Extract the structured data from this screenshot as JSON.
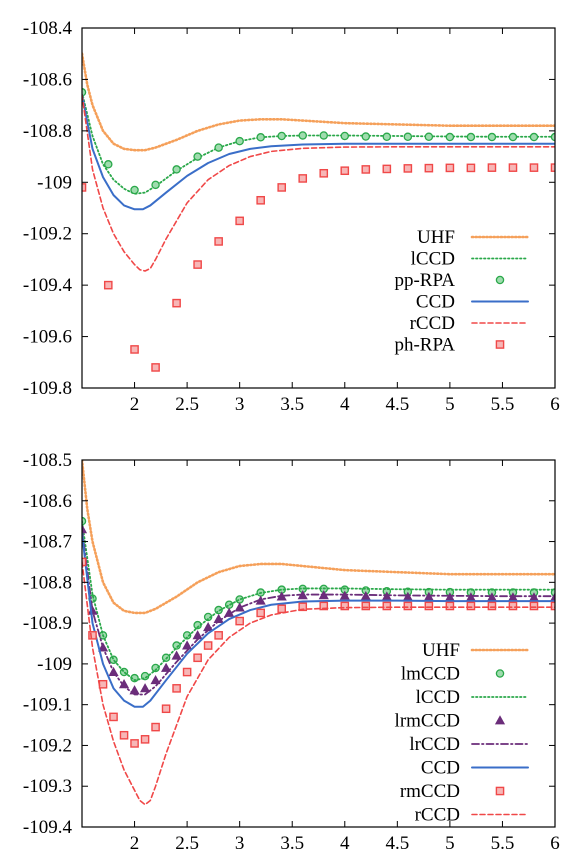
{
  "chart_data": [
    {
      "type": "line",
      "title": "",
      "xlabel": "",
      "ylabel": "",
      "xlim": [
        1.5,
        6
      ],
      "ylim": [
        -109.8,
        -108.4
      ],
      "xticks": [
        "2",
        "2.5",
        "3",
        "3.5",
        "4",
        "4.5",
        "5",
        "5.5",
        "6"
      ],
      "yticks": [
        "-108.4",
        "-108.6",
        "-108.8",
        "-109",
        "-109.2",
        "-109.4",
        "-109.6",
        "-109.8"
      ],
      "grid": false,
      "legend_position": "bottom-right",
      "series": [
        {
          "name": "UHF",
          "style": "dotted-thick",
          "color": "#f5a05a",
          "x": [
            1.5,
            1.55,
            1.6,
            1.7,
            1.8,
            1.9,
            2.0,
            2.1,
            2.2,
            2.4,
            2.6,
            2.8,
            3.0,
            3.2,
            3.4,
            3.6,
            3.8,
            4.0,
            4.5,
            5.0,
            5.5,
            6.0
          ],
          "y": [
            -108.5,
            -108.62,
            -108.7,
            -108.8,
            -108.85,
            -108.87,
            -108.875,
            -108.875,
            -108.865,
            -108.835,
            -108.8,
            -108.775,
            -108.76,
            -108.755,
            -108.755,
            -108.76,
            -108.765,
            -108.77,
            -108.775,
            -108.78,
            -108.78,
            -108.78
          ]
        },
        {
          "name": "lCCD",
          "style": "dotted",
          "color": "#2aa84a",
          "x": [
            1.5,
            1.6,
            1.7,
            1.8,
            1.9,
            2.0,
            2.1,
            2.2,
            2.4,
            2.6,
            2.8,
            3.0,
            3.2,
            3.4,
            3.6,
            4.0,
            4.5,
            5.0,
            5.5,
            6.0
          ],
          "y": [
            -108.65,
            -108.82,
            -108.93,
            -108.99,
            -109.025,
            -109.045,
            -109.04,
            -109.015,
            -108.955,
            -108.905,
            -108.865,
            -108.84,
            -108.825,
            -108.82,
            -108.818,
            -108.818,
            -108.82,
            -108.822,
            -108.823,
            -108.823
          ]
        },
        {
          "name": "pp-RPA",
          "style": "circle",
          "color": "#2aa84a",
          "x": [
            1.5,
            1.75,
            2.0,
            2.2,
            2.4,
            2.6,
            2.8,
            3.0,
            3.2,
            3.4,
            3.6,
            3.8,
            4.0,
            4.2,
            4.4,
            4.6,
            4.8,
            5.0,
            5.2,
            5.4,
            5.6,
            5.8,
            6.0
          ],
          "y": [
            -108.65,
            -108.93,
            -109.03,
            -109.01,
            -108.95,
            -108.9,
            -108.865,
            -108.84,
            -108.825,
            -108.82,
            -108.818,
            -108.818,
            -108.82,
            -108.822,
            -108.823,
            -108.823,
            -108.823,
            -108.824,
            -108.824,
            -108.824,
            -108.824,
            -108.824,
            -108.824
          ]
        },
        {
          "name": "CCD",
          "style": "solid",
          "color": "#3a6ec8",
          "x": [
            1.5,
            1.6,
            1.7,
            1.8,
            1.9,
            2.0,
            2.08,
            2.15,
            2.3,
            2.5,
            2.7,
            2.9,
            3.1,
            3.3,
            3.6,
            4.0,
            4.5,
            5.0,
            5.5,
            6.0
          ],
          "y": [
            -108.66,
            -108.87,
            -108.98,
            -109.05,
            -109.09,
            -109.105,
            -109.105,
            -109.09,
            -109.04,
            -108.975,
            -108.925,
            -108.89,
            -108.87,
            -108.86,
            -108.853,
            -108.85,
            -108.85,
            -108.85,
            -108.85,
            -108.85
          ]
        },
        {
          "name": "rCCD",
          "style": "dashed",
          "color": "#f04848",
          "x": [
            1.5,
            1.6,
            1.7,
            1.8,
            1.9,
            2.0,
            2.05,
            2.1,
            2.15,
            2.2,
            2.3,
            2.5,
            2.7,
            2.9,
            3.1,
            3.3,
            3.6,
            4.0,
            4.5,
            5.0,
            5.5,
            6.0
          ],
          "y": [
            -108.66,
            -108.95,
            -109.1,
            -109.2,
            -109.27,
            -109.32,
            -109.34,
            -109.345,
            -109.335,
            -109.3,
            -109.22,
            -109.08,
            -108.99,
            -108.935,
            -108.9,
            -108.88,
            -108.868,
            -108.863,
            -108.862,
            -108.862,
            -108.862,
            -108.862
          ]
        },
        {
          "name": "ph-RPA",
          "style": "square",
          "color": "#f04848",
          "x": [
            1.5,
            1.75,
            2.0,
            2.2,
            2.4,
            2.6,
            2.8,
            3.0,
            3.2,
            3.4,
            3.6,
            3.8,
            4.0,
            4.2,
            4.4,
            4.6,
            4.8,
            5.0,
            5.2,
            5.4,
            5.6,
            5.8,
            6.0
          ],
          "y": [
            -109.02,
            -109.4,
            -109.65,
            -109.72,
            -109.47,
            -109.32,
            -109.23,
            -109.15,
            -109.07,
            -109.02,
            -108.985,
            -108.965,
            -108.955,
            -108.95,
            -108.948,
            -108.946,
            -108.945,
            -108.944,
            -108.944,
            -108.943,
            -108.943,
            -108.943,
            -108.943
          ]
        }
      ]
    },
    {
      "type": "line",
      "title": "",
      "xlabel": "",
      "ylabel": "",
      "xlim": [
        1.5,
        6
      ],
      "ylim": [
        -109.4,
        -108.5
      ],
      "xticks": [
        "2",
        "2.5",
        "3",
        "3.5",
        "4",
        "4.5",
        "5",
        "5.5",
        "6"
      ],
      "yticks": [
        "-108.5",
        "-108.6",
        "-108.7",
        "-108.8",
        "-108.9",
        "-109",
        "-109.1",
        "-109.2",
        "-109.3",
        "-109.4"
      ],
      "grid": false,
      "legend_position": "bottom-right",
      "series": [
        {
          "name": "UHF",
          "style": "dotted-thick",
          "color": "#f5a05a",
          "x": [
            1.5,
            1.55,
            1.6,
            1.7,
            1.8,
            1.9,
            2.0,
            2.1,
            2.2,
            2.4,
            2.6,
            2.8,
            3.0,
            3.2,
            3.4,
            3.6,
            3.8,
            4.0,
            4.5,
            5.0,
            5.5,
            6.0
          ],
          "y": [
            -108.5,
            -108.62,
            -108.7,
            -108.8,
            -108.85,
            -108.87,
            -108.875,
            -108.875,
            -108.865,
            -108.835,
            -108.8,
            -108.775,
            -108.76,
            -108.755,
            -108.755,
            -108.76,
            -108.765,
            -108.77,
            -108.775,
            -108.78,
            -108.78,
            -108.78
          ]
        },
        {
          "name": "lmCCD",
          "style": "circle",
          "color": "#2aa84a",
          "x": [
            1.5,
            1.6,
            1.7,
            1.8,
            1.9,
            2.0,
            2.1,
            2.2,
            2.3,
            2.4,
            2.5,
            2.6,
            2.7,
            2.8,
            2.9,
            3.0,
            3.2,
            3.4,
            3.6,
            3.8,
            4.0,
            4.2,
            4.4,
            4.6,
            4.8,
            5.0,
            5.2,
            5.4,
            5.6,
            5.8,
            6.0
          ],
          "y": [
            -108.65,
            -108.84,
            -108.93,
            -108.99,
            -109.02,
            -109.035,
            -109.03,
            -109.01,
            -108.985,
            -108.955,
            -108.93,
            -108.905,
            -108.885,
            -108.868,
            -108.855,
            -108.842,
            -108.825,
            -108.818,
            -108.816,
            -108.816,
            -108.818,
            -108.82,
            -108.822,
            -108.823,
            -108.824,
            -108.824,
            -108.825,
            -108.825,
            -108.825,
            -108.825,
            -108.825
          ]
        },
        {
          "name": "lCCD",
          "style": "dotted",
          "color": "#2aa84a",
          "x": [
            1.5,
            1.6,
            1.7,
            1.8,
            1.9,
            2.0,
            2.1,
            2.2,
            2.4,
            2.6,
            2.8,
            3.0,
            3.2,
            3.4,
            3.6,
            4.0,
            4.5,
            5.0,
            5.5,
            6.0
          ],
          "y": [
            -108.65,
            -108.83,
            -108.93,
            -108.99,
            -109.02,
            -109.04,
            -109.035,
            -109.015,
            -108.96,
            -108.91,
            -108.87,
            -108.842,
            -108.826,
            -108.818,
            -108.815,
            -108.815,
            -108.817,
            -108.818,
            -108.818,
            -108.818
          ]
        },
        {
          "name": "lrmCCD",
          "style": "triangle",
          "color": "#6b2d7a",
          "x": [
            1.5,
            1.6,
            1.7,
            1.8,
            1.9,
            2.0,
            2.1,
            2.2,
            2.3,
            2.4,
            2.5,
            2.6,
            2.7,
            2.8,
            2.9,
            3.0,
            3.2,
            3.4,
            3.6,
            3.8,
            4.0,
            4.2,
            4.4,
            4.6,
            4.8,
            5.0,
            5.2,
            5.4,
            5.6,
            5.8,
            6.0
          ],
          "y": [
            -108.67,
            -108.87,
            -108.96,
            -109.02,
            -109.05,
            -109.065,
            -109.06,
            -109.04,
            -109.01,
            -108.98,
            -108.955,
            -108.93,
            -108.91,
            -108.89,
            -108.875,
            -108.862,
            -108.845,
            -108.835,
            -108.832,
            -108.832,
            -108.833,
            -108.834,
            -108.835,
            -108.836,
            -108.836,
            -108.837,
            -108.837,
            -108.837,
            -108.837,
            -108.837,
            -108.837
          ]
        },
        {
          "name": "lrCCD",
          "style": "dashdot",
          "color": "#6b2d7a",
          "x": [
            1.5,
            1.6,
            1.7,
            1.8,
            1.9,
            2.0,
            2.1,
            2.2,
            2.4,
            2.6,
            2.8,
            3.0,
            3.2,
            3.4,
            3.6,
            4.0,
            4.5,
            5.0,
            5.5,
            6.0
          ],
          "y": [
            -108.67,
            -108.87,
            -108.96,
            -109.02,
            -109.055,
            -109.075,
            -109.075,
            -109.055,
            -108.995,
            -108.94,
            -108.895,
            -108.862,
            -108.842,
            -108.833,
            -108.83,
            -108.83,
            -108.832,
            -108.833,
            -108.834,
            -108.834
          ]
        },
        {
          "name": "CCD",
          "style": "solid",
          "color": "#3a6ec8",
          "x": [
            1.5,
            1.6,
            1.7,
            1.8,
            1.9,
            2.0,
            2.08,
            2.15,
            2.3,
            2.5,
            2.7,
            2.9,
            3.1,
            3.3,
            3.6,
            4.0,
            4.5,
            5.0,
            5.5,
            6.0
          ],
          "y": [
            -108.68,
            -108.9,
            -109.0,
            -109.06,
            -109.09,
            -109.105,
            -109.105,
            -109.09,
            -109.04,
            -108.975,
            -108.925,
            -108.89,
            -108.868,
            -108.855,
            -108.847,
            -108.845,
            -108.845,
            -108.846,
            -108.846,
            -108.846
          ]
        },
        {
          "name": "rmCCD",
          "style": "square",
          "color": "#f04848",
          "x": [
            1.5,
            1.6,
            1.7,
            1.8,
            1.9,
            2.0,
            2.1,
            2.2,
            2.3,
            2.4,
            2.5,
            2.6,
            2.7,
            2.8,
            3.0,
            3.2,
            3.4,
            3.6,
            3.8,
            4.0,
            4.2,
            4.4,
            4.6,
            4.8,
            5.0,
            5.2,
            5.4,
            5.6,
            5.8,
            6.0
          ],
          "y": [
            -108.75,
            -108.93,
            -109.05,
            -109.13,
            -109.175,
            -109.195,
            -109.185,
            -109.155,
            -109.11,
            -109.06,
            -109.02,
            -108.985,
            -108.955,
            -108.93,
            -108.895,
            -108.875,
            -108.865,
            -108.86,
            -108.858,
            -108.858,
            -108.858,
            -108.858,
            -108.858,
            -108.858,
            -108.858,
            -108.858,
            -108.858,
            -108.858,
            -108.858,
            -108.858
          ]
        },
        {
          "name": "rCCD",
          "style": "dashed",
          "color": "#f04848",
          "x": [
            1.5,
            1.6,
            1.7,
            1.8,
            1.9,
            2.0,
            2.05,
            2.1,
            2.15,
            2.2,
            2.3,
            2.5,
            2.7,
            2.9,
            3.1,
            3.3,
            3.6,
            4.0,
            4.5,
            5.0,
            5.5,
            6.0
          ],
          "y": [
            -108.75,
            -108.96,
            -109.1,
            -109.19,
            -109.26,
            -109.31,
            -109.335,
            -109.345,
            -109.335,
            -109.3,
            -109.22,
            -109.08,
            -108.99,
            -108.935,
            -108.9,
            -108.88,
            -108.866,
            -108.862,
            -108.861,
            -108.861,
            -108.861,
            -108.861
          ]
        }
      ]
    }
  ]
}
